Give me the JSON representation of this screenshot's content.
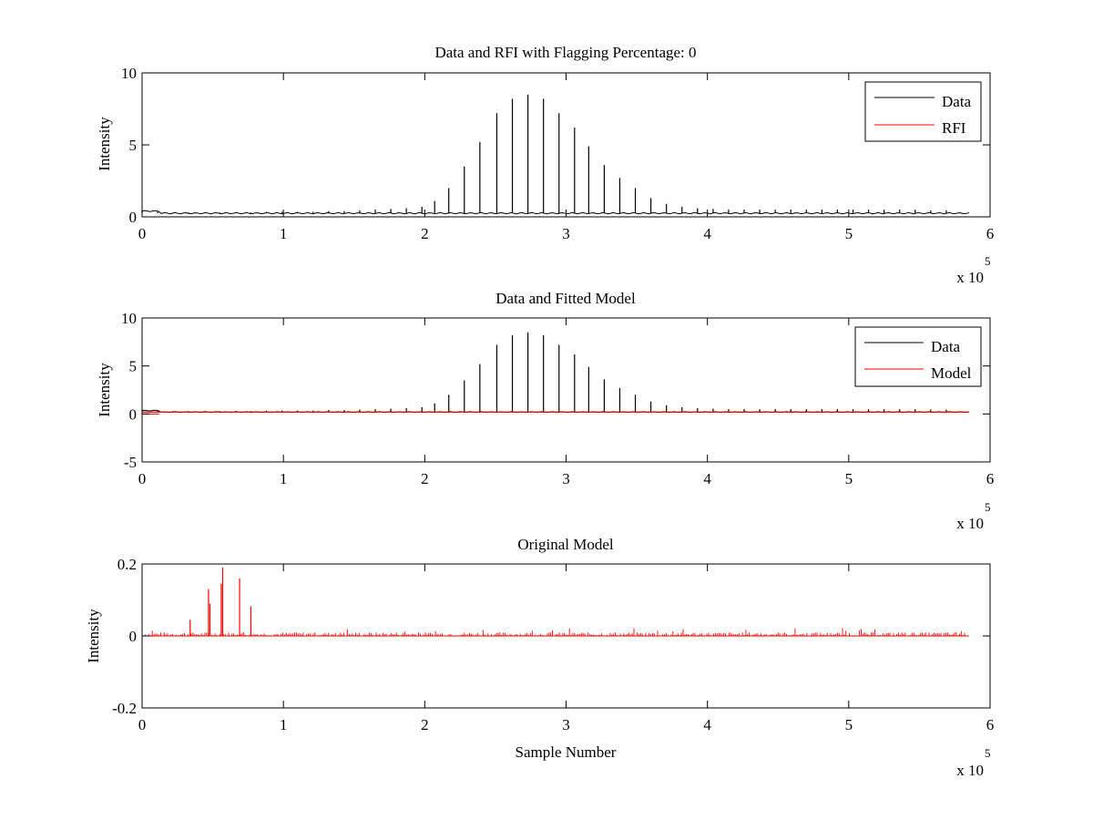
{
  "chart_data": [
    {
      "type": "line",
      "title": "Data and RFI with Flagging Percentage: 0",
      "xlabel": "",
      "ylabel": "Intensity",
      "xlim": [
        0,
        600000
      ],
      "ylim": [
        0,
        10
      ],
      "xticks": [
        0,
        1,
        2,
        3,
        4,
        5,
        6
      ],
      "yticks": [
        0,
        5,
        10
      ],
      "x_multiplier_label": "x 10",
      "x_multiplier_exponent": "5",
      "grid": false,
      "legend_position": "top-right",
      "baseline": 0.25,
      "series": [
        {
          "name": "Data",
          "color": "#000000",
          "spikes_x": [
            0,
            11000,
            22000,
            33000,
            44000,
            55000,
            66000,
            77000,
            88000,
            99000,
            110000,
            121000,
            132000,
            143000,
            154000,
            165000,
            176000,
            187000,
            198000,
            207000,
            217000,
            228000,
            239000,
            251000,
            262000,
            273000,
            284000,
            295000,
            306000,
            316000,
            327000,
            338000,
            349000,
            360000,
            371000,
            382000,
            393000,
            404000,
            415000,
            426000,
            437000,
            448000,
            459000,
            470000,
            481000,
            492000,
            503000,
            514000,
            525000,
            536000,
            547000,
            558000,
            569000
          ],
          "spikes_y": [
            0.45,
            0.35,
            0.3,
            0.3,
            0.3,
            0.3,
            0.3,
            0.3,
            0.35,
            0.35,
            0.35,
            0.35,
            0.4,
            0.4,
            0.45,
            0.5,
            0.55,
            0.6,
            0.7,
            1.1,
            2.0,
            3.5,
            5.2,
            7.2,
            8.2,
            8.5,
            8.2,
            7.2,
            6.2,
            4.9,
            3.6,
            2.7,
            2.0,
            1.3,
            0.9,
            0.7,
            0.6,
            0.55,
            0.5,
            0.5,
            0.5,
            0.5,
            0.5,
            0.5,
            0.5,
            0.5,
            0.5,
            0.5,
            0.5,
            0.5,
            0.5,
            0.45,
            0.45
          ]
        },
        {
          "name": "RFI",
          "color": "#ff0000",
          "spikes_x": [],
          "spikes_y": []
        }
      ]
    },
    {
      "type": "line",
      "title": "Data and Fitted Model",
      "xlabel": "",
      "ylabel": "Intensity",
      "xlim": [
        0,
        600000
      ],
      "ylim": [
        -5,
        10
      ],
      "xticks": [
        0,
        1,
        2,
        3,
        4,
        5,
        6
      ],
      "yticks": [
        -5,
        0,
        5,
        10
      ],
      "x_multiplier_label": "x 10",
      "x_multiplier_exponent": "5",
      "grid": false,
      "legend_position": "top-right",
      "baseline": 0.2,
      "series": [
        {
          "name": "Data",
          "color": "#000000",
          "spikes_x": [
            0,
            11000,
            22000,
            33000,
            44000,
            55000,
            66000,
            77000,
            88000,
            99000,
            110000,
            121000,
            132000,
            143000,
            154000,
            165000,
            176000,
            187000,
            198000,
            207000,
            217000,
            228000,
            239000,
            251000,
            262000,
            273000,
            284000,
            295000,
            306000,
            316000,
            327000,
            338000,
            349000,
            360000,
            371000,
            382000,
            393000,
            404000,
            415000,
            426000,
            437000,
            448000,
            459000,
            470000,
            481000,
            492000,
            503000,
            514000,
            525000,
            536000,
            547000,
            558000,
            569000
          ],
          "spikes_y": [
            0.45,
            0.35,
            0.3,
            0.3,
            0.3,
            0.3,
            0.3,
            0.3,
            0.35,
            0.35,
            0.35,
            0.35,
            0.4,
            0.4,
            0.45,
            0.5,
            0.55,
            0.6,
            0.7,
            1.1,
            2.0,
            3.5,
            5.2,
            7.2,
            8.2,
            8.5,
            8.2,
            7.2,
            6.2,
            4.9,
            3.6,
            2.7,
            2.0,
            1.3,
            0.9,
            0.7,
            0.6,
            0.55,
            0.5,
            0.5,
            0.5,
            0.5,
            0.5,
            0.5,
            0.5,
            0.5,
            0.5,
            0.5,
            0.5,
            0.5,
            0.5,
            0.45,
            0.45
          ]
        },
        {
          "name": "Model",
          "color": "#ff0000",
          "level": 0.2
        }
      ]
    },
    {
      "type": "line",
      "title": "Original Model",
      "xlabel": "Sample Number",
      "ylabel": "Intensity",
      "xlim": [
        0,
        600000
      ],
      "ylim": [
        -0.2,
        0.2
      ],
      "xticks": [
        0,
        1,
        2,
        3,
        4,
        5,
        6
      ],
      "yticks": [
        -0.2,
        0,
        0.2
      ],
      "ytick_labels": [
        "-0.2",
        "0",
        "0.2"
      ],
      "x_multiplier_label": "x 10",
      "x_multiplier_exponent": "5",
      "grid": false,
      "baseline": 0,
      "series": [
        {
          "name": "",
          "color": "#ff0000",
          "spikes_x": [
            34000,
            47000,
            48000,
            56000,
            57000,
            69000,
            77000
          ],
          "spikes_y": [
            0.045,
            0.13,
            0.09,
            0.145,
            0.19,
            0.16,
            0.082
          ],
          "noise_amplitude": 0.01,
          "noise_x_end": 585000
        }
      ]
    }
  ]
}
